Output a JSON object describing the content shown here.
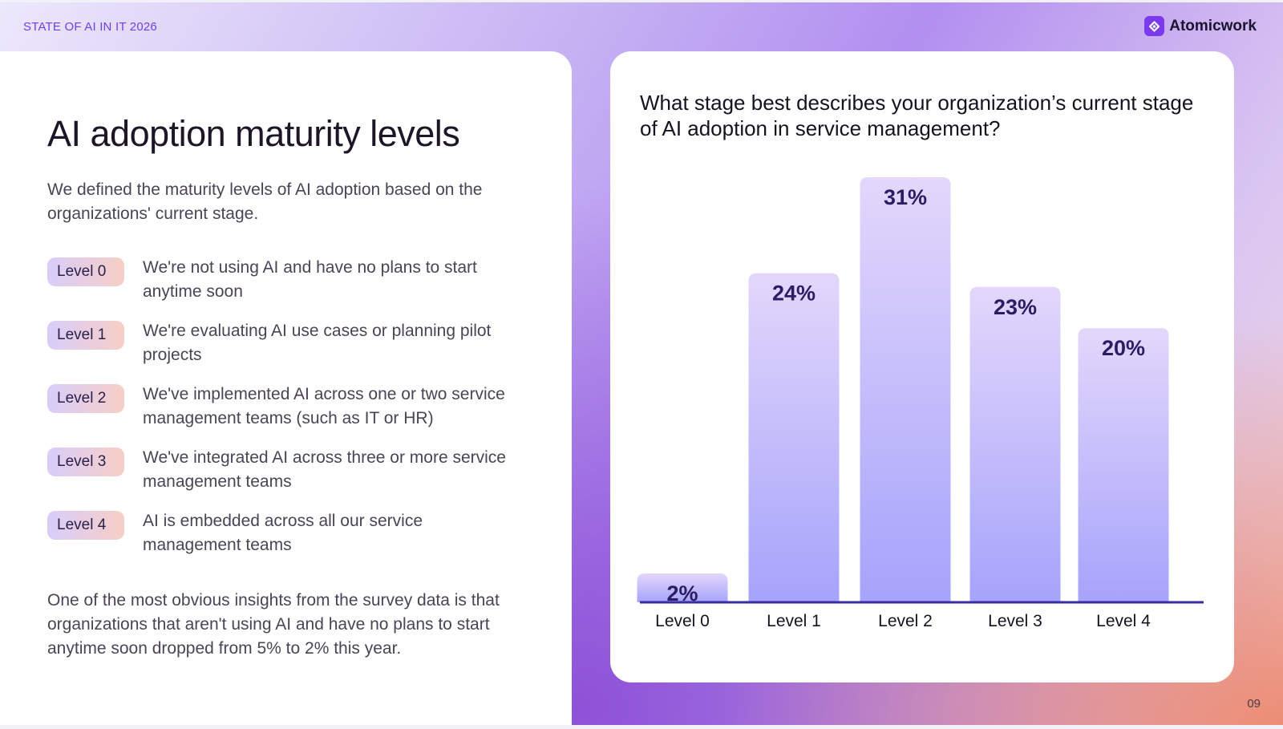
{
  "header": {
    "label": "STATE OF AI IN IT 2026",
    "brand_name": "Atomicwork",
    "brand_icon": "atomicwork-logo-icon",
    "accent_color": "#7c3aed"
  },
  "left": {
    "title": "AI adoption maturity levels",
    "intro": "We defined the maturity levels of AI adoption based on the organizations' current stage.",
    "levels": [
      {
        "badge": "Level 0",
        "description": "We're not using AI and have no plans to start anytime soon"
      },
      {
        "badge": "Level 1",
        "description": "We're evaluating AI use cases or planning pilot projects"
      },
      {
        "badge": "Level 2",
        "description": "We've implemented AI across one or two service management teams (such as IT or HR)"
      },
      {
        "badge": "Level 3",
        "description": "We've integrated AI across three or more service management teams"
      },
      {
        "badge": "Level 4",
        "description": "AI is embedded across all our service management teams"
      }
    ],
    "insight": "One of the most obvious insights from the survey data is that organizations that aren't using AI and have no plans to start anytime soon dropped from 5% to 2% this year."
  },
  "chart_data": {
    "type": "bar",
    "title": "What stage best describes your organization’s current stage of AI adoption in service management?",
    "categories": [
      "Level 0",
      "Level 1",
      "Level 2",
      "Level 3",
      "Level 4"
    ],
    "values": [
      2,
      24,
      31,
      23,
      20
    ],
    "value_labels": [
      "2%",
      "24%",
      "31%",
      "23%",
      "20%"
    ],
    "unit": "%",
    "xlabel": "",
    "ylabel": "",
    "ylim": [
      0,
      31
    ],
    "grid": false,
    "legend": "none",
    "bar_color_top": "#e3d7fb",
    "bar_color_bottom": "#a6a3fb",
    "baseline_color": "#3a2ca3"
  },
  "footer": {
    "page_number": "09"
  }
}
